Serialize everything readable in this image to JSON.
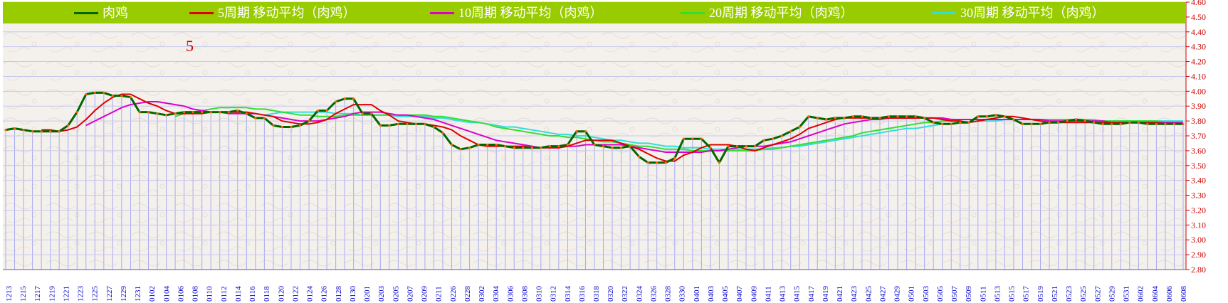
{
  "chart_data": {
    "type": "line",
    "annotations": [
      "5"
    ],
    "legend_position": "top",
    "grid": true,
    "ylim": [
      2.8,
      4.6
    ],
    "y_ticks": [
      "2.80",
      "2.90",
      "3.00",
      "3.10",
      "3.20",
      "3.30",
      "3.40",
      "3.50",
      "3.60",
      "3.70",
      "3.80",
      "3.90",
      "4.00",
      "4.10",
      "4.20",
      "4.30",
      "4.40",
      "4.50",
      "4.60"
    ],
    "x_tick_labels": [
      "1213",
      "1215",
      "1217",
      "1219",
      "1221",
      "1223",
      "1225",
      "1227",
      "1229",
      "1231",
      "0102",
      "0104",
      "0106",
      "0108",
      "0110",
      "0112",
      "0114",
      "0116",
      "0118",
      "0120",
      "0122",
      "0124",
      "0126",
      "0128",
      "0130",
      "0201",
      "0203",
      "0205",
      "0207",
      "0209",
      "0211",
      "0226",
      "0228",
      "0302",
      "0304",
      "0306",
      "0308",
      "0310",
      "0312",
      "0314",
      "0316",
      "0318",
      "0320",
      "0322",
      "0324",
      "0326",
      "0328",
      "0330",
      "0401",
      "0403",
      "0405",
      "0407",
      "0409",
      "0411",
      "0413",
      "0415",
      "0417",
      "0419",
      "0421",
      "0423",
      "0425",
      "0427",
      "0429",
      "0501",
      "0503",
      "0505",
      "0507",
      "0509",
      "0511",
      "0513",
      "0515",
      "0517",
      "0519",
      "0521",
      "0523",
      "0525",
      "0527",
      "0529",
      "0531",
      "0602",
      "0604",
      "0606",
      "0608"
    ],
    "series": [
      {
        "name": "肉鸡",
        "color": "#006600",
        "marker_color": "#ff6600",
        "values": [
          3.74,
          3.75,
          3.74,
          3.73,
          3.73,
          3.73,
          3.73,
          3.77,
          3.86,
          3.98,
          3.99,
          3.99,
          3.97,
          3.97,
          3.96,
          3.86,
          3.86,
          3.85,
          3.84,
          3.85,
          3.86,
          3.86,
          3.86,
          3.86,
          3.86,
          3.86,
          3.87,
          3.85,
          3.82,
          3.82,
          3.77,
          3.76,
          3.76,
          3.77,
          3.8,
          3.87,
          3.87,
          3.93,
          3.95,
          3.95,
          3.85,
          3.85,
          3.77,
          3.77,
          3.78,
          3.78,
          3.78,
          3.78,
          3.76,
          3.72,
          3.64,
          3.61,
          3.62,
          3.64,
          3.64,
          3.64,
          3.63,
          3.62,
          3.62,
          3.62,
          3.62,
          3.63,
          3.63,
          3.64,
          3.73,
          3.73,
          3.64,
          3.63,
          3.62,
          3.62,
          3.63,
          3.56,
          3.52,
          3.52,
          3.52,
          3.55,
          3.68,
          3.68,
          3.68,
          3.62,
          3.52,
          3.63,
          3.63,
          3.63,
          3.63,
          3.67,
          3.68,
          3.7,
          3.73,
          3.76,
          3.83,
          3.82,
          3.81,
          3.82,
          3.82,
          3.83,
          3.83,
          3.82,
          3.82,
          3.83,
          3.83,
          3.83,
          3.83,
          3.82,
          3.79,
          3.78,
          3.78,
          3.79,
          3.79,
          3.83,
          3.83,
          3.84,
          3.83,
          3.81,
          3.78,
          3.78,
          3.78,
          3.79,
          3.79,
          3.8,
          3.81,
          3.8,
          3.79,
          3.78,
          3.78,
          3.78,
          3.79,
          3.79,
          3.78,
          3.78,
          3.78,
          3.78,
          3.78
        ]
      },
      {
        "name": "5周期 移动平均（肉鸡）",
        "color": "#dd0000",
        "values": [
          null,
          null,
          null,
          null,
          3.74,
          3.74,
          3.73,
          3.74,
          3.76,
          3.81,
          3.87,
          3.92,
          3.96,
          3.98,
          3.98,
          3.95,
          3.92,
          3.9,
          3.87,
          3.85,
          3.85,
          3.85,
          3.85,
          3.86,
          3.86,
          3.86,
          3.86,
          3.86,
          3.85,
          3.84,
          3.83,
          3.8,
          3.79,
          3.78,
          3.78,
          3.79,
          3.81,
          3.85,
          3.88,
          3.91,
          3.91,
          3.91,
          3.87,
          3.84,
          3.8,
          3.79,
          3.78,
          3.78,
          3.77,
          3.76,
          3.74,
          3.7,
          3.67,
          3.64,
          3.63,
          3.63,
          3.63,
          3.63,
          3.63,
          3.62,
          3.62,
          3.62,
          3.62,
          3.63,
          3.65,
          3.67,
          3.67,
          3.67,
          3.67,
          3.65,
          3.63,
          3.61,
          3.58,
          3.55,
          3.53,
          3.53,
          3.57,
          3.59,
          3.62,
          3.64,
          3.64,
          3.64,
          3.63,
          3.61,
          3.6,
          3.62,
          3.64,
          3.66,
          3.68,
          3.71,
          3.75,
          3.77,
          3.79,
          3.81,
          3.82,
          3.82,
          3.82,
          3.82,
          3.82,
          3.82,
          3.82,
          3.82,
          3.82,
          3.82,
          3.82,
          3.81,
          3.8,
          3.8,
          3.79,
          3.8,
          3.81,
          3.82,
          3.83,
          3.83,
          3.82,
          3.81,
          3.8,
          3.79,
          3.79,
          3.79,
          3.79,
          3.79,
          3.79,
          3.79,
          3.79,
          3.79,
          3.79,
          3.79,
          3.79,
          3.79,
          3.78,
          3.78,
          3.78
        ]
      },
      {
        "name": "10周期 移动平均（肉鸡）",
        "color": "#dd00cc",
        "values": [
          null,
          null,
          null,
          null,
          null,
          null,
          null,
          null,
          null,
          3.77,
          3.8,
          3.83,
          3.86,
          3.89,
          3.91,
          3.92,
          3.93,
          3.93,
          3.92,
          3.91,
          3.9,
          3.88,
          3.87,
          3.86,
          3.86,
          3.85,
          3.85,
          3.85,
          3.85,
          3.84,
          3.83,
          3.82,
          3.81,
          3.8,
          3.8,
          3.8,
          3.81,
          3.82,
          3.83,
          3.85,
          3.86,
          3.86,
          3.86,
          3.85,
          3.84,
          3.84,
          3.83,
          3.82,
          3.81,
          3.79,
          3.77,
          3.75,
          3.73,
          3.71,
          3.69,
          3.67,
          3.66,
          3.65,
          3.64,
          3.63,
          3.62,
          3.62,
          3.62,
          3.63,
          3.63,
          3.64,
          3.64,
          3.64,
          3.64,
          3.64,
          3.63,
          3.62,
          3.61,
          3.6,
          3.59,
          3.59,
          3.59,
          3.59,
          3.59,
          3.6,
          3.6,
          3.61,
          3.62,
          3.63,
          3.63,
          3.63,
          3.64,
          3.65,
          3.66,
          3.68,
          3.7,
          3.72,
          3.74,
          3.76,
          3.78,
          3.79,
          3.8,
          3.81,
          3.81,
          3.82,
          3.82,
          3.82,
          3.82,
          3.82,
          3.82,
          3.82,
          3.81,
          3.81,
          3.81,
          3.81,
          3.81,
          3.81,
          3.81,
          3.81,
          3.81,
          3.81,
          3.81,
          3.8,
          3.8,
          3.8,
          3.8,
          3.8,
          3.8,
          3.8,
          3.79,
          3.79,
          3.79,
          3.79,
          3.79,
          3.79,
          3.79,
          3.79,
          3.79
        ]
      },
      {
        "name": "20周期 移动平均（肉鸡）",
        "color": "#33dd33",
        "values": [
          null,
          null,
          null,
          null,
          null,
          null,
          null,
          null,
          null,
          null,
          null,
          null,
          null,
          null,
          null,
          null,
          null,
          null,
          null,
          3.83,
          3.85,
          3.86,
          3.87,
          3.88,
          3.89,
          3.89,
          3.89,
          3.89,
          3.88,
          3.88,
          3.87,
          3.86,
          3.85,
          3.84,
          3.84,
          3.83,
          3.83,
          3.83,
          3.84,
          3.84,
          3.84,
          3.84,
          3.84,
          3.84,
          3.84,
          3.84,
          3.84,
          3.84,
          3.83,
          3.83,
          3.82,
          3.81,
          3.8,
          3.79,
          3.78,
          3.76,
          3.75,
          3.74,
          3.73,
          3.72,
          3.71,
          3.7,
          3.7,
          3.69,
          3.69,
          3.68,
          3.67,
          3.66,
          3.66,
          3.65,
          3.64,
          3.63,
          3.63,
          3.62,
          3.61,
          3.61,
          3.61,
          3.6,
          3.6,
          3.6,
          3.6,
          3.6,
          3.6,
          3.6,
          3.6,
          3.61,
          3.61,
          3.62,
          3.63,
          3.64,
          3.65,
          3.66,
          3.67,
          3.68,
          3.69,
          3.7,
          3.72,
          3.73,
          3.74,
          3.75,
          3.76,
          3.77,
          3.78,
          3.79,
          3.79,
          3.8,
          3.8,
          3.81,
          3.81,
          3.81,
          3.81,
          3.81,
          3.81,
          3.81,
          3.81,
          3.81,
          3.81,
          3.81,
          3.81,
          3.81,
          3.81,
          3.81,
          3.8,
          3.8,
          3.8,
          3.8,
          3.8,
          3.8,
          3.8,
          3.8,
          3.79,
          3.79,
          3.79
        ]
      },
      {
        "name": "30周期 移动平均（肉鸡）",
        "color": "#33dddd",
        "values": [
          null,
          null,
          null,
          null,
          null,
          null,
          null,
          null,
          null,
          null,
          null,
          null,
          null,
          null,
          null,
          null,
          null,
          null,
          null,
          null,
          null,
          null,
          null,
          null,
          null,
          null,
          null,
          null,
          null,
          3.84,
          3.85,
          3.86,
          3.86,
          3.86,
          3.86,
          3.86,
          3.86,
          3.85,
          3.85,
          3.85,
          3.84,
          3.84,
          3.84,
          3.84,
          3.83,
          3.83,
          3.83,
          3.83,
          3.82,
          3.82,
          3.81,
          3.8,
          3.79,
          3.79,
          3.78,
          3.77,
          3.76,
          3.76,
          3.75,
          3.74,
          3.73,
          3.72,
          3.71,
          3.71,
          3.7,
          3.7,
          3.69,
          3.68,
          3.67,
          3.67,
          3.66,
          3.65,
          3.65,
          3.64,
          3.63,
          3.63,
          3.62,
          3.62,
          3.62,
          3.61,
          3.61,
          3.61,
          3.61,
          3.61,
          3.61,
          3.61,
          3.62,
          3.62,
          3.63,
          3.63,
          3.64,
          3.65,
          3.66,
          3.67,
          3.68,
          3.69,
          3.7,
          3.71,
          3.72,
          3.73,
          3.74,
          3.75,
          3.75,
          3.76,
          3.77,
          3.78,
          3.78,
          3.79,
          3.79,
          3.8,
          3.8,
          3.8,
          3.81,
          3.81,
          3.81,
          3.81,
          3.81,
          3.81,
          3.81,
          3.81,
          3.81,
          3.81,
          3.81,
          3.8,
          3.8,
          3.8,
          3.8,
          3.8,
          3.8,
          3.8,
          3.8,
          3.8,
          3.8
        ]
      }
    ]
  }
}
